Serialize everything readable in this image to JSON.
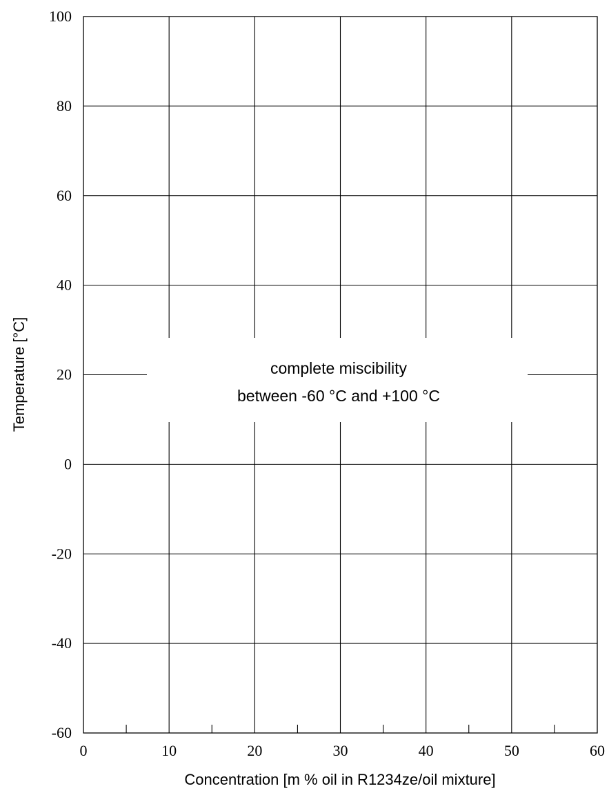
{
  "chart_data": {
    "type": "line",
    "title": "",
    "xlabel": "Concentration [m % oil in R1234ze/oil mixture]",
    "ylabel": "Temperature [°C]",
    "xlim": [
      0,
      60
    ],
    "ylim": [
      -60,
      100
    ],
    "x_ticks": [
      "0",
      "10",
      "20",
      "30",
      "40",
      "50",
      "60"
    ],
    "x_minor_ticks": [
      5,
      15,
      25,
      35,
      45,
      55
    ],
    "y_ticks": [
      "-60",
      "-40",
      "-20",
      "0",
      "20",
      "40",
      "60",
      "80",
      "100"
    ],
    "grid": true,
    "series": [],
    "annotations": [
      {
        "lines": [
          "complete miscibility",
          "between -60 °C and +100 °C"
        ],
        "x": 30,
        "y": 20
      }
    ]
  }
}
